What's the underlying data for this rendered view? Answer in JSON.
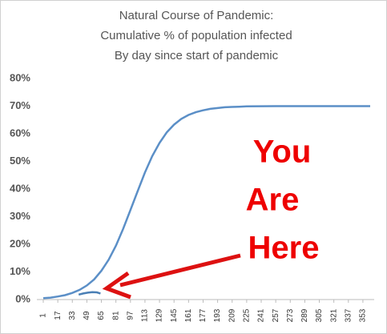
{
  "chart_data": {
    "type": "line",
    "title": [
      "Natural Course of Pandemic:",
      "Cumulative % of population infected",
      "By day since start of pandemic"
    ],
    "annotation": [
      "You",
      "Are",
      "Here"
    ],
    "series": [
      {
        "color": "#5b8fc7",
        "x": [
          1,
          9,
          17,
          25,
          33,
          41,
          49,
          57,
          65,
          73,
          81,
          89,
          97,
          105,
          113,
          121,
          129,
          137,
          145,
          153,
          161,
          169,
          177,
          185,
          193,
          201,
          209,
          217,
          225,
          257,
          289,
          321,
          361
        ],
        "values": [
          0.5,
          0.7,
          1.1,
          1.6,
          2.4,
          3.5,
          5.1,
          7.3,
          10.4,
          14.4,
          19.5,
          25.6,
          32.4,
          39.3,
          46.0,
          51.9,
          56.7,
          60.5,
          63.3,
          65.4,
          66.8,
          67.8,
          68.5,
          69.0,
          69.3,
          69.6,
          69.7,
          69.8,
          69.9,
          70,
          70,
          70,
          70
        ]
      },
      {
        "color": "#4a7fb5",
        "x": [
          40,
          45,
          50,
          55,
          60,
          64
        ],
        "values": [
          1.8,
          2.2,
          2.5,
          2.7,
          2.6,
          2.2
        ]
      }
    ],
    "xlim": [
      1,
      361
    ],
    "xticks": [
      1,
      17,
      33,
      49,
      65,
      81,
      97,
      113,
      129,
      145,
      161,
      177,
      193,
      209,
      225,
      241,
      257,
      273,
      289,
      305,
      321,
      337,
      353
    ],
    "ylim": [
      0,
      80
    ],
    "yticks": [
      {
        "value": 0,
        "label": "0%"
      },
      {
        "value": 10,
        "label": "10%"
      },
      {
        "value": 20,
        "label": "20%"
      },
      {
        "value": 30,
        "label": "30%"
      },
      {
        "value": 40,
        "label": "40%"
      },
      {
        "value": 50,
        "label": "50%"
      },
      {
        "value": 60,
        "label": "60%"
      },
      {
        "value": 70,
        "label": "70%"
      },
      {
        "value": 80,
        "label": "80%"
      }
    ],
    "grid": false
  }
}
